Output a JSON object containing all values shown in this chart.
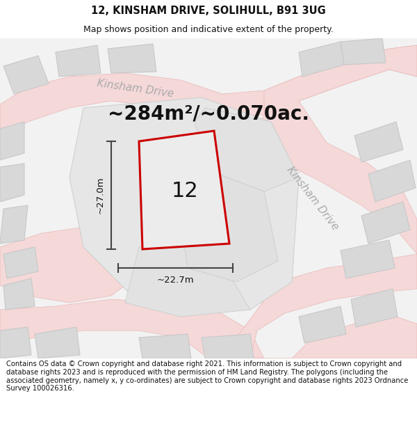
{
  "title": "12, KINSHAM DRIVE, SOLIHULL, B91 3UG",
  "subtitle": "Map shows position and indicative extent of the property.",
  "area_text": "~284m²/~0.070ac.",
  "number_label": "12",
  "width_label": "~22.7m",
  "height_label": "~27.0m",
  "copyright_text": "Contains OS data © Crown copyright and database right 2021. This information is subject to Crown copyright and database rights 2023 and is reproduced with the permission of HM Land Registry. The polygons (including the associated geometry, namely x, y co-ordinates) are subject to Crown copyright and database rights 2023 Ordnance Survey 100026316.",
  "map_bg": "#f0f0f0",
  "road_fill": "#f5d8d8",
  "road_edge": "#e8b8b8",
  "road_line": "#e8b0b0",
  "block_fill": "#d8d8d8",
  "block_edge": "#c8c8c8",
  "parcel_fill": "#e8e8e8",
  "parcel_edge": "#d0d0d0",
  "plot_fill": "#ececec",
  "plot_outline": "#cc0000",
  "dim_color": "#444444",
  "road_label_color": "#aaaaaa",
  "title_fontsize": 10.5,
  "subtitle_fontsize": 9,
  "area_fontsize": 20,
  "number_fontsize": 22,
  "dim_fontsize": 9.5,
  "road_label_fontsize": 11,
  "copyright_fontsize": 7.2
}
